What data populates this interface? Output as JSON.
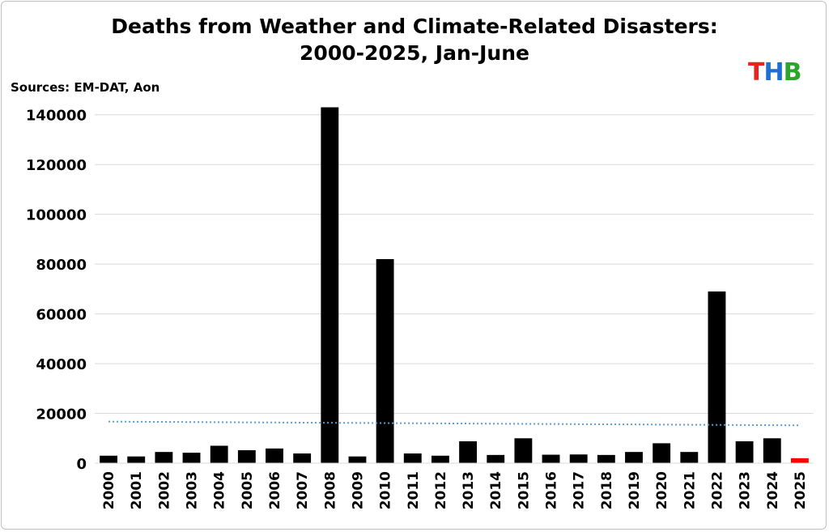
{
  "chart_data": {
    "type": "bar",
    "title_line1": "Deaths from Weather and Climate-Related Disasters:",
    "title_line2": "2000-2025, Jan-June",
    "source": "Sources: EM-DAT, Aon",
    "logo": {
      "letters": [
        "T",
        "H",
        "B"
      ],
      "colors": [
        "#e8231f",
        "#1f6fd1",
        "#2ca52c"
      ]
    },
    "categories": [
      "2000",
      "2001",
      "2002",
      "2003",
      "2004",
      "2005",
      "2006",
      "2007",
      "2008",
      "2009",
      "2010",
      "2011",
      "2012",
      "2013",
      "2014",
      "2015",
      "2016",
      "2017",
      "2018",
      "2019",
      "2020",
      "2021",
      "2022",
      "2023",
      "2024",
      "2025"
    ],
    "values": [
      3000,
      2700,
      4500,
      4200,
      7000,
      5200,
      5900,
      3900,
      143000,
      2700,
      82000,
      3900,
      3000,
      8800,
      3300,
      10000,
      3400,
      3500,
      3300,
      4500,
      8000,
      4500,
      69000,
      8800,
      10000,
      2000
    ],
    "highlight_index": 25,
    "bar_color": "#000000",
    "highlight_color": "#ff0000",
    "ylim": [
      0,
      150000
    ],
    "yticks": [
      0,
      20000,
      40000,
      60000,
      80000,
      100000,
      120000,
      140000
    ],
    "ytick_labels": [
      "0",
      "20000",
      "40000",
      "60000",
      "80000",
      "100000",
      "120000",
      "140000"
    ],
    "trendline": {
      "start": 16700,
      "end": 15200,
      "color": "#5b9bd5",
      "style": "dotted"
    },
    "grid": true,
    "legend": "none"
  }
}
